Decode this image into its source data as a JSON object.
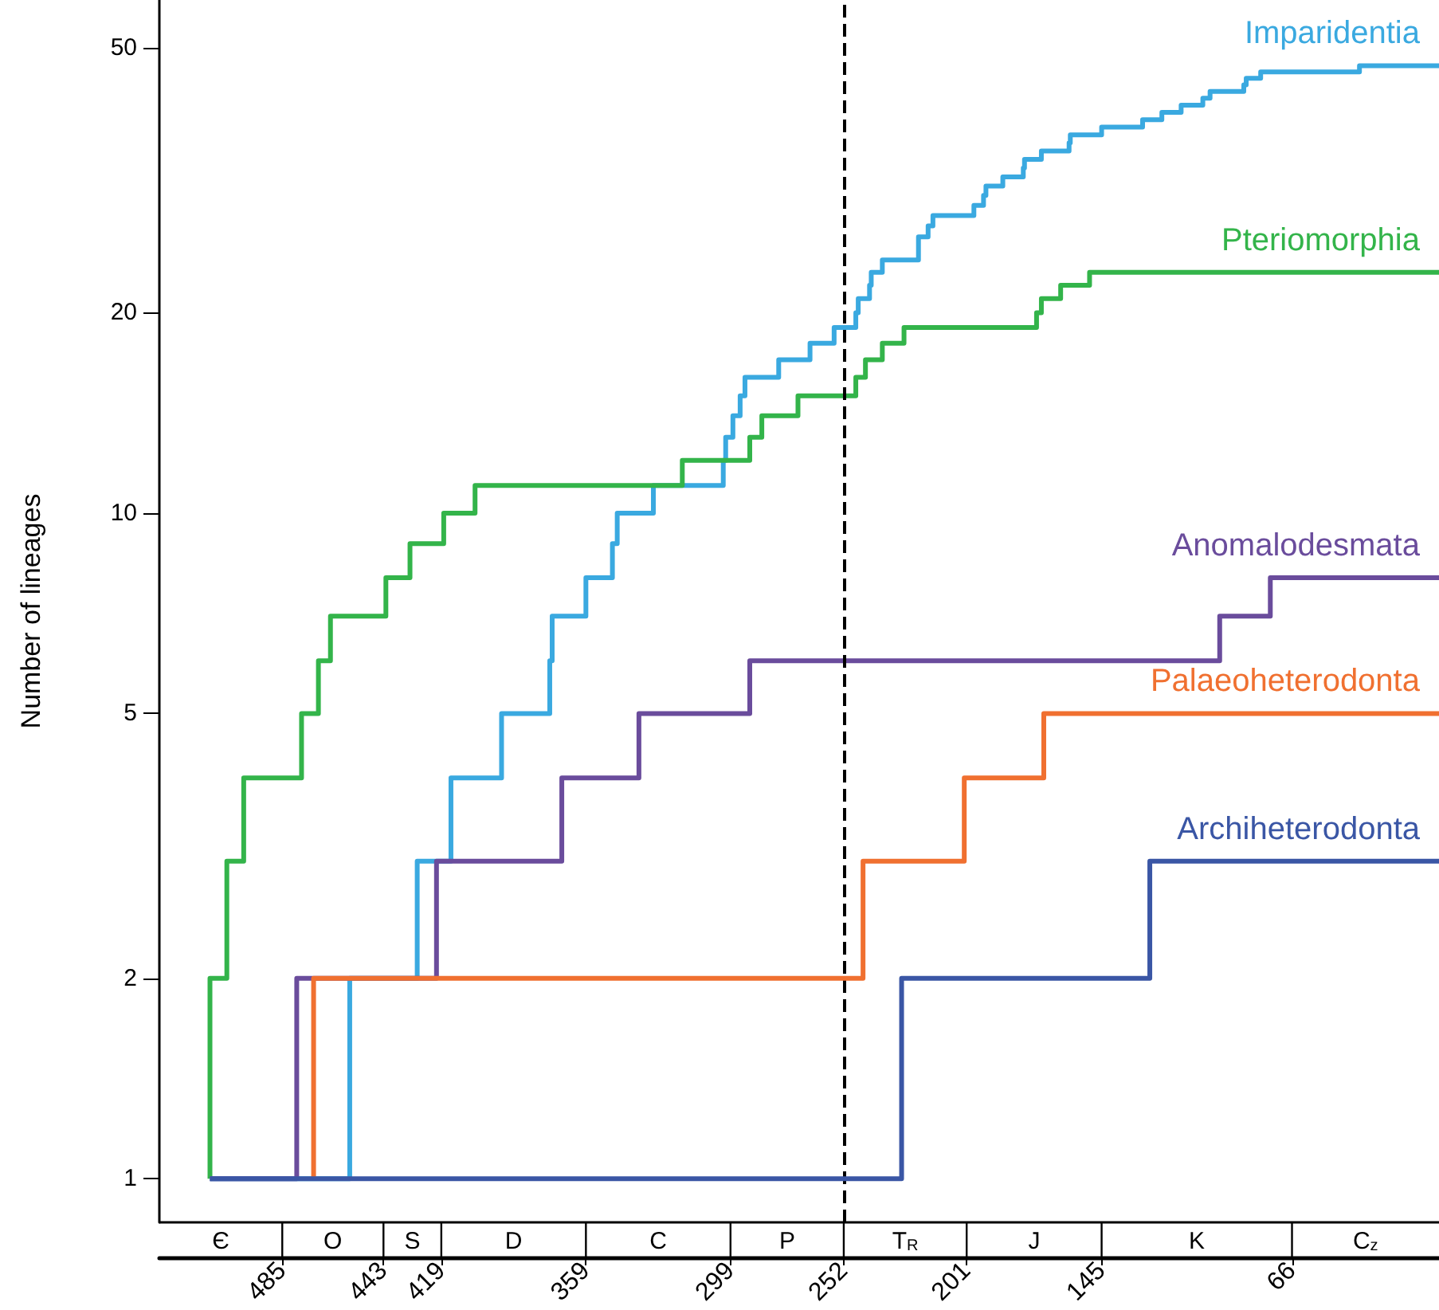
{
  "chart_data": {
    "type": "step",
    "ylabel": "Number of lineages",
    "log": "y",
    "grid": false,
    "legend": false,
    "xlim": [
      536,
      5
    ],
    "xticks": [
      485,
      443,
      419,
      359,
      299,
      252,
      201,
      145,
      66
    ],
    "ylim": [
      0.86,
      59
    ],
    "yticks": [
      1,
      2,
      5,
      10,
      20,
      50
    ],
    "annotations": [
      "Є",
      "O",
      "S",
      "D",
      "C",
      "P",
      "T$_{R}$",
      "J",
      "K",
      "C$_{z}$"
    ],
    "ref_lines": [
      {
        "axis": "x",
        "value": 252,
        "color": "#000000",
        "line_style": "dashed"
      }
    ],
    "series": [
      {
        "name": "Imparidentia",
        "color": "#3aa9e0",
        "x": [
          515,
          457,
          429,
          415,
          394,
          374,
          373,
          359,
          348,
          346,
          331,
          302,
          301,
          298,
          295,
          293,
          279,
          266,
          256,
          247,
          246,
          241.3,
          240.6,
          236,
          221,
          217,
          215,
          198,
          194,
          193,
          186,
          177.5,
          177,
          170,
          158.5,
          158,
          145,
          128,
          120,
          112,
          103,
          100,
          86,
          85,
          79,
          38,
          5
        ],
        "values": [
          1,
          2,
          3,
          4,
          5,
          6,
          7,
          8,
          9,
          10,
          11,
          12,
          13,
          14,
          15,
          16,
          17,
          18,
          19,
          20,
          21,
          22,
          23,
          24,
          26,
          27,
          28,
          29,
          30,
          31,
          32,
          33,
          34,
          35,
          36,
          37,
          38,
          39,
          40,
          41,
          42,
          43,
          44,
          45,
          46,
          47,
          47
        ]
      },
      {
        "name": "Pteriomorphia",
        "color": "#33b44a",
        "x": [
          515,
          515,
          508,
          501,
          477,
          470,
          465,
          442,
          432,
          418,
          405,
          319,
          291,
          286,
          271,
          247,
          243,
          236,
          227,
          172,
          170,
          162,
          150,
          5
        ],
        "values": [
          1,
          2,
          3,
          4,
          5,
          6,
          7,
          8,
          9,
          10,
          11,
          12,
          13,
          14,
          15,
          16,
          17,
          18,
          19,
          20,
          21,
          22,
          23,
          23
        ]
      },
      {
        "name": "Anomalodesmata",
        "color": "#6a4c9c",
        "x": [
          515,
          479,
          421,
          369,
          337,
          291,
          96,
          75,
          5
        ],
        "values": [
          1,
          2,
          3,
          4,
          5,
          6,
          7,
          8,
          8
        ]
      },
      {
        "name": "Palaeoheterodonta",
        "color": "#f07030",
        "x": [
          472,
          472,
          244,
          202,
          169,
          5
        ],
        "values": [
          1,
          2,
          3,
          4,
          5,
          5
        ]
      },
      {
        "name": "Archiheterodonta",
        "color": "#3a56a5",
        "x": [
          515,
          228,
          125,
          5
        ],
        "values": [
          1,
          2,
          3,
          3
        ]
      }
    ]
  }
}
